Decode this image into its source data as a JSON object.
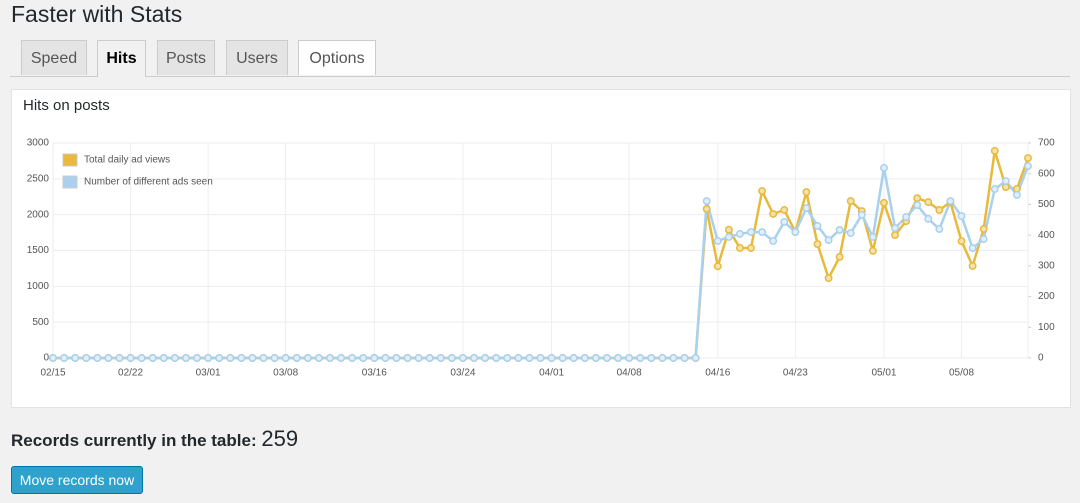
{
  "header": {
    "title": "Faster with Stats"
  },
  "tabs": [
    "Speed",
    "Hits",
    "Posts",
    "Users",
    "Options"
  ],
  "active_tab": 1,
  "chart_data": {
    "type": "line",
    "title": "Hits on posts",
    "categories": [
      "02/15",
      null,
      null,
      null,
      null,
      null,
      null,
      "02/22",
      null,
      null,
      null,
      null,
      null,
      null,
      "03/01",
      null,
      null,
      null,
      null,
      null,
      null,
      "03/08",
      null,
      null,
      null,
      null,
      null,
      null,
      null,
      "03/16",
      null,
      null,
      null,
      null,
      null,
      null,
      null,
      "03/24",
      null,
      null,
      null,
      null,
      null,
      null,
      null,
      "04/01",
      null,
      null,
      null,
      null,
      null,
      null,
      "04/08",
      null,
      null,
      null,
      null,
      null,
      null,
      null,
      "04/16",
      null,
      null,
      null,
      null,
      null,
      null,
      "04/23",
      null,
      null,
      null,
      null,
      null,
      null,
      null,
      "05/01",
      null,
      null,
      null,
      null,
      null,
      null,
      "05/08",
      null,
      null,
      null,
      null,
      null,
      null
    ],
    "series": [
      {
        "name": "Total daily ad views",
        "color": "#e8b93a",
        "marker_fill": "#f3e2b0",
        "values": [
          0,
          0,
          0,
          0,
          0,
          0,
          0,
          0,
          0,
          0,
          0,
          0,
          0,
          0,
          0,
          0,
          0,
          0,
          0,
          0,
          0,
          0,
          0,
          0,
          0,
          0,
          0,
          0,
          0,
          0,
          0,
          0,
          0,
          0,
          0,
          0,
          0,
          0,
          0,
          0,
          0,
          0,
          0,
          0,
          0,
          0,
          0,
          0,
          0,
          0,
          0,
          0,
          0,
          0,
          0,
          0,
          0,
          0,
          0,
          2080,
          1280,
          1790,
          1535,
          1535,
          2330,
          2010,
          2065,
          1760,
          2315,
          1590,
          1115,
          1410,
          2190,
          2050,
          1495,
          2165,
          1715,
          1910,
          2230,
          2175,
          2065,
          2175,
          1630,
          1285,
          1800,
          2890,
          2385,
          2360,
          2790
        ]
      },
      {
        "name": "Number of different ads seen",
        "color": "#a9d0ef",
        "marker_fill": "#e2effa",
        "axis": "y2",
        "values": [
          0,
          0,
          0,
          0,
          0,
          0,
          0,
          0,
          0,
          0,
          0,
          0,
          0,
          0,
          0,
          0,
          0,
          0,
          0,
          0,
          0,
          0,
          0,
          0,
          0,
          0,
          0,
          0,
          0,
          0,
          0,
          0,
          0,
          0,
          0,
          0,
          0,
          0,
          0,
          0,
          0,
          0,
          0,
          0,
          0,
          0,
          0,
          0,
          0,
          0,
          0,
          0,
          0,
          0,
          0,
          0,
          0,
          0,
          0,
          511,
          381,
          394,
          404,
          410,
          410,
          381,
          443,
          410,
          488,
          430,
          384,
          417,
          407,
          466,
          394,
          619,
          423,
          459,
          498,
          453,
          420,
          511,
          462,
          358,
          387,
          550,
          576,
          531,
          625
        ]
      }
    ],
    "ylim": [
      0,
      3000
    ],
    "yticks": [
      0,
      500,
      1000,
      1500,
      2000,
      2500,
      3000
    ],
    "y2lim": [
      0,
      700
    ],
    "y2ticks": [
      0,
      100,
      200,
      300,
      400,
      500,
      600,
      700
    ],
    "grid": true,
    "legend": "top-left"
  },
  "records": {
    "label": "Records currently in the table:",
    "count": 259
  },
  "button": "Move records now"
}
